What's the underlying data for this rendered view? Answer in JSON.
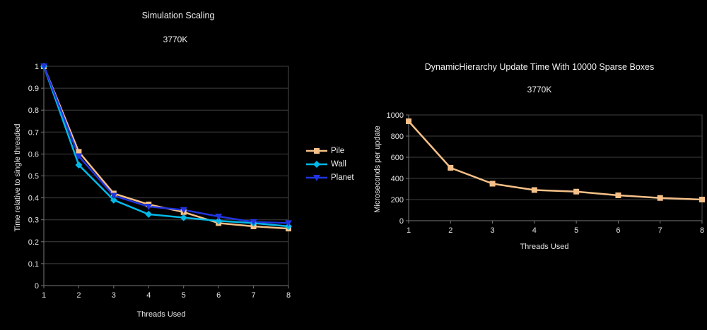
{
  "chart_data": [
    {
      "type": "line",
      "title": "Simulation Scaling",
      "subtitle": "3770K",
      "xlabel": "Threads Used",
      "ylabel": "Time relative to single threaded",
      "x": [
        1,
        2,
        3,
        4,
        5,
        6,
        7,
        8
      ],
      "xticklabels": [
        "1",
        "2",
        "3",
        "4",
        "5",
        "6",
        "7",
        "8"
      ],
      "ylim": [
        0,
        1
      ],
      "ytick_step": 0.1,
      "yticklabels": [
        "0",
        "0.1",
        "0.2",
        "0.3",
        "0.4",
        "0.5",
        "0.6",
        "0.7",
        "0.8",
        "0.9",
        "1"
      ],
      "grid": true,
      "legend_position": "right",
      "series": [
        {
          "name": "Pile",
          "color": "#F5C088",
          "marker": "square",
          "values": [
            1,
            0.61,
            0.42,
            0.37,
            0.335,
            0.285,
            0.27,
            0.26
          ]
        },
        {
          "name": "Wall",
          "color": "#00B9E8",
          "marker": "diamond",
          "values": [
            1,
            0.55,
            0.39,
            0.325,
            0.31,
            0.295,
            0.285,
            0.27
          ]
        },
        {
          "name": "Planet",
          "color": "#2035E0",
          "marker": "triangle-down",
          "values": [
            1,
            0.59,
            0.41,
            0.36,
            0.345,
            0.315,
            0.29,
            0.285
          ]
        }
      ]
    },
    {
      "type": "line",
      "title": "DynamicHierarchy Update Time With 10000 Sparse Boxes",
      "subtitle": "3770K",
      "xlabel": "Threads Used",
      "ylabel": "Microseconds per update",
      "x": [
        1,
        2,
        3,
        4,
        5,
        6,
        7,
        8
      ],
      "xticklabels": [
        "1",
        "2",
        "3",
        "4",
        "5",
        "6",
        "7",
        "8"
      ],
      "ylim": [
        0,
        1000
      ],
      "ytick_step": 200,
      "yticklabels": [
        "0",
        "200",
        "400",
        "600",
        "800",
        "1000"
      ],
      "grid": true,
      "legend_position": "none",
      "series": [
        {
          "name": "",
          "color": "#F5C088",
          "marker": "square",
          "values": [
            940,
            500,
            350,
            290,
            275,
            240,
            215,
            200
          ]
        }
      ]
    }
  ],
  "colors": {
    "background": "#000000",
    "grid": "#3f3f3f",
    "plot_border": "#4a4a4a",
    "axis": "#787878",
    "text": "#f2f2f2"
  }
}
